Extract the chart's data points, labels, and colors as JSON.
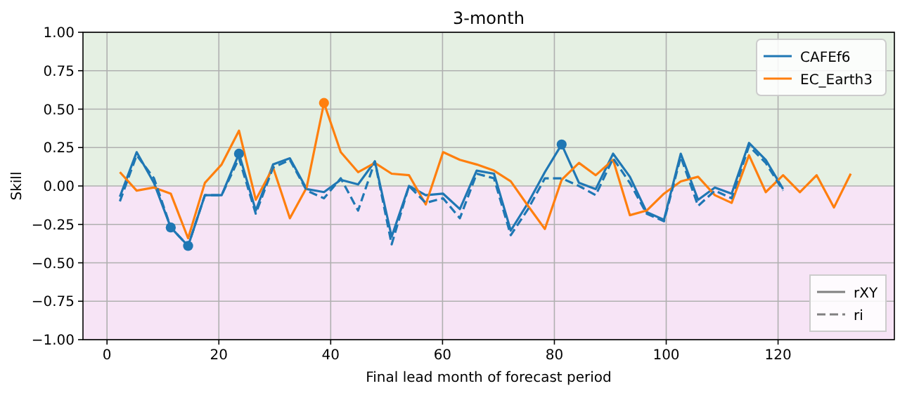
{
  "chart_data": {
    "type": "line",
    "title": "3-month",
    "xlabel": "Final lead month of forecast period",
    "ylabel": "Skill",
    "xlim": [
      -4.3,
      140.8
    ],
    "xticks": [
      0,
      20,
      40,
      60,
      80,
      100,
      120
    ],
    "ylim": [
      -1,
      1
    ],
    "yticks": [
      {
        "value": -1,
        "label": "−1.00"
      },
      {
        "value": -0.75,
        "label": "−0.75"
      },
      {
        "value": -0.5,
        "label": "−0.50"
      },
      {
        "value": -0.25,
        "label": "−0.25"
      },
      {
        "value": 0,
        "label": "0.00"
      },
      {
        "value": 0.25,
        "label": "0.25"
      },
      {
        "value": 0.5,
        "label": "0.50"
      },
      {
        "value": 0.75,
        "label": "0.75"
      },
      {
        "value": 1,
        "label": "1.00"
      }
    ],
    "grid": true,
    "legend": "top right",
    "marker": "none",
    "bands": [
      {
        "axis": "y",
        "from": 0,
        "to": 1,
        "color": "#e5f0e3"
      },
      {
        "axis": "y",
        "from": -1,
        "to": 0,
        "color": "#f7e4f6"
      }
    ],
    "annotations": [
      "rXY",
      "ri"
    ],
    "series": [
      {
        "name": "CAFEf6",
        "color": "#1f77b4",
        "line_style": "solid",
        "x": [
          2.3,
          5.3,
          8.4,
          11.4,
          14.5,
          17.5,
          20.5,
          23.6,
          26.6,
          29.7,
          32.7,
          35.7,
          38.8,
          41.8,
          44.9,
          47.9,
          50.9,
          54.0,
          57.0,
          60.1,
          63.1,
          66.1,
          69.2,
          72.2,
          75.3,
          78.3,
          81.3,
          84.4,
          87.4,
          90.5,
          93.5,
          96.5,
          99.6,
          102.6,
          105.7,
          108.7,
          111.7,
          114.8,
          117.8,
          120.9
        ],
        "values": [
          -0.07,
          0.22,
          0.02,
          -0.27,
          -0.39,
          -0.06,
          -0.06,
          0.21,
          -0.16,
          0.14,
          0.18,
          -0.02,
          -0.04,
          0.04,
          0.01,
          0.16,
          -0.33,
          0.0,
          -0.06,
          -0.05,
          -0.15,
          0.1,
          0.08,
          -0.29,
          -0.11,
          0.09,
          0.27,
          0.02,
          -0.02,
          0.21,
          0.06,
          -0.17,
          -0.22,
          0.21,
          -0.09,
          -0.01,
          -0.05,
          0.28,
          0.17,
          -0.02
        ]
      },
      {
        "name": "EC_Earth3",
        "color": "#ff7f0e",
        "line_style": "solid",
        "x": [
          2.3,
          5.3,
          8.4,
          11.4,
          14.5,
          17.5,
          20.5,
          23.6,
          26.6,
          29.7,
          32.7,
          35.7,
          38.8,
          41.8,
          44.9,
          47.9,
          50.9,
          54.0,
          57.0,
          60.1,
          63.1,
          66.1,
          69.2,
          72.2,
          75.3,
          78.3,
          81.3,
          84.4,
          87.4,
          90.5,
          93.5,
          96.5,
          99.6,
          102.6,
          105.7,
          108.7,
          111.7,
          114.8,
          117.8,
          120.9,
          123.9,
          126.9,
          130.0,
          133.0
        ],
        "values": [
          0.09,
          -0.03,
          -0.01,
          -0.05,
          -0.34,
          0.02,
          0.14,
          0.36,
          -0.09,
          0.12,
          -0.21,
          -0.01,
          0.54,
          0.22,
          0.09,
          0.15,
          0.08,
          0.07,
          -0.12,
          0.22,
          0.17,
          0.14,
          0.1,
          0.03,
          -0.13,
          -0.28,
          0.04,
          0.15,
          0.07,
          0.17,
          -0.19,
          -0.16,
          -0.05,
          0.03,
          0.06,
          -0.06,
          -0.11,
          0.2,
          -0.04,
          0.07,
          -0.04,
          0.07,
          -0.14,
          0.08
        ]
      },
      {
        "color": "#1f77b4",
        "line_style": "dashed",
        "x": [
          2.3,
          5.3,
          8.4,
          11.4,
          14.5,
          17.5,
          20.5,
          23.6,
          26.6,
          29.7,
          32.7,
          35.7,
          38.8,
          41.8,
          44.9,
          47.9,
          50.9,
          54.0,
          57.0,
          60.1,
          63.1,
          66.1,
          69.2,
          72.2,
          75.3,
          78.3,
          81.3,
          84.4,
          87.4,
          90.5,
          93.5,
          96.5,
          99.6,
          102.6,
          105.7,
          108.7,
          111.7,
          114.8,
          117.8,
          120.9
        ],
        "values": [
          -0.1,
          0.2,
          0.05,
          -0.27,
          -0.39,
          -0.06,
          -0.06,
          0.18,
          -0.18,
          0.12,
          0.17,
          -0.03,
          -0.08,
          0.05,
          -0.16,
          0.16,
          -0.38,
          0.0,
          -0.11,
          -0.08,
          -0.21,
          0.08,
          0.05,
          -0.32,
          -0.15,
          0.05,
          0.05,
          0.0,
          -0.06,
          0.18,
          0.02,
          -0.18,
          -0.23,
          0.19,
          -0.13,
          -0.03,
          -0.08,
          0.26,
          0.15,
          -0.03
        ]
      },
      {
        "type": "scatter",
        "marker": "circle",
        "color": "#1f77b4",
        "x": [
          11.4,
          14.5,
          23.6,
          81.3
        ],
        "values": [
          -0.27,
          -0.39,
          0.21,
          0.27
        ]
      },
      {
        "type": "scatter",
        "marker": "circle",
        "color": "#ff7f0e",
        "x": [
          38.8
        ],
        "values": [
          0.54
        ]
      }
    ]
  }
}
